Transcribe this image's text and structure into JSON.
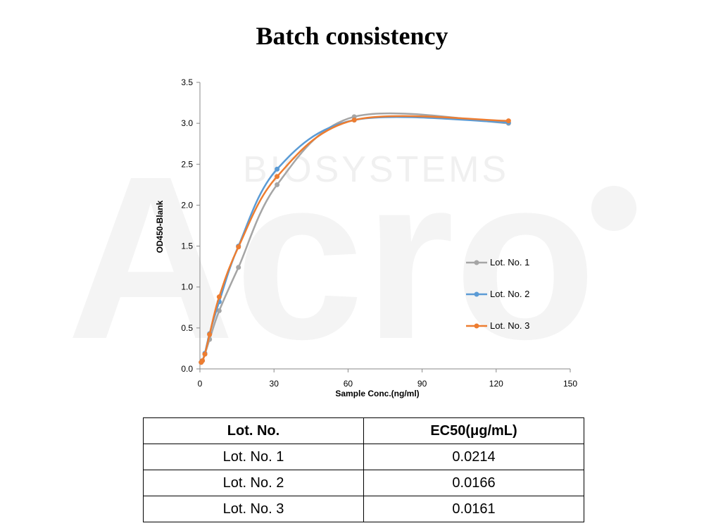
{
  "title": "Batch consistency",
  "watermark": {
    "logo_text": "Acro",
    "sub_text": "BIOSYSTEMS"
  },
  "chart_data": {
    "type": "line",
    "xlabel": "Sample Conc.(ng/ml)",
    "ylabel": "OD450-Blank",
    "xlim": [
      0,
      150
    ],
    "ylim": [
      0,
      3.5
    ],
    "xticks": [
      0,
      30,
      60,
      90,
      120,
      150
    ],
    "yticks": [
      0.0,
      0.5,
      1.0,
      1.5,
      2.0,
      2.5,
      3.0,
      3.5
    ],
    "grid": false,
    "legend": "right",
    "series": [
      {
        "name": "Lot. No. 1",
        "color": "#a5a5a5",
        "x": [
          0.5,
          1,
          2,
          3.9,
          7.8,
          15.6,
          31.25,
          62.5,
          125
        ],
        "y": [
          0.08,
          0.1,
          0.18,
          0.36,
          0.71,
          1.24,
          2.25,
          3.08,
          3.0
        ]
      },
      {
        "name": "Lot. No. 2",
        "color": "#5b9bd5",
        "x": [
          0.5,
          1,
          2,
          3.9,
          7.8,
          15.6,
          31.25,
          62.5,
          125
        ],
        "y": [
          0.08,
          0.1,
          0.19,
          0.43,
          0.82,
          1.5,
          2.44,
          3.04,
          3.01
        ]
      },
      {
        "name": "Lot. No. 3",
        "color": "#ed7d31",
        "x": [
          0.5,
          1,
          2,
          3.9,
          7.8,
          15.6,
          31.25,
          62.5,
          125
        ],
        "y": [
          0.08,
          0.1,
          0.18,
          0.42,
          0.88,
          1.49,
          2.35,
          3.04,
          3.03
        ]
      }
    ]
  },
  "table": {
    "headers": [
      "Lot. No.",
      "EC50(μg/mL)"
    ],
    "rows": [
      [
        "Lot. No. 1",
        "0.0214"
      ],
      [
        "Lot. No. 2",
        "0.0166"
      ],
      [
        "Lot. No. 3",
        "0.0161"
      ]
    ]
  }
}
